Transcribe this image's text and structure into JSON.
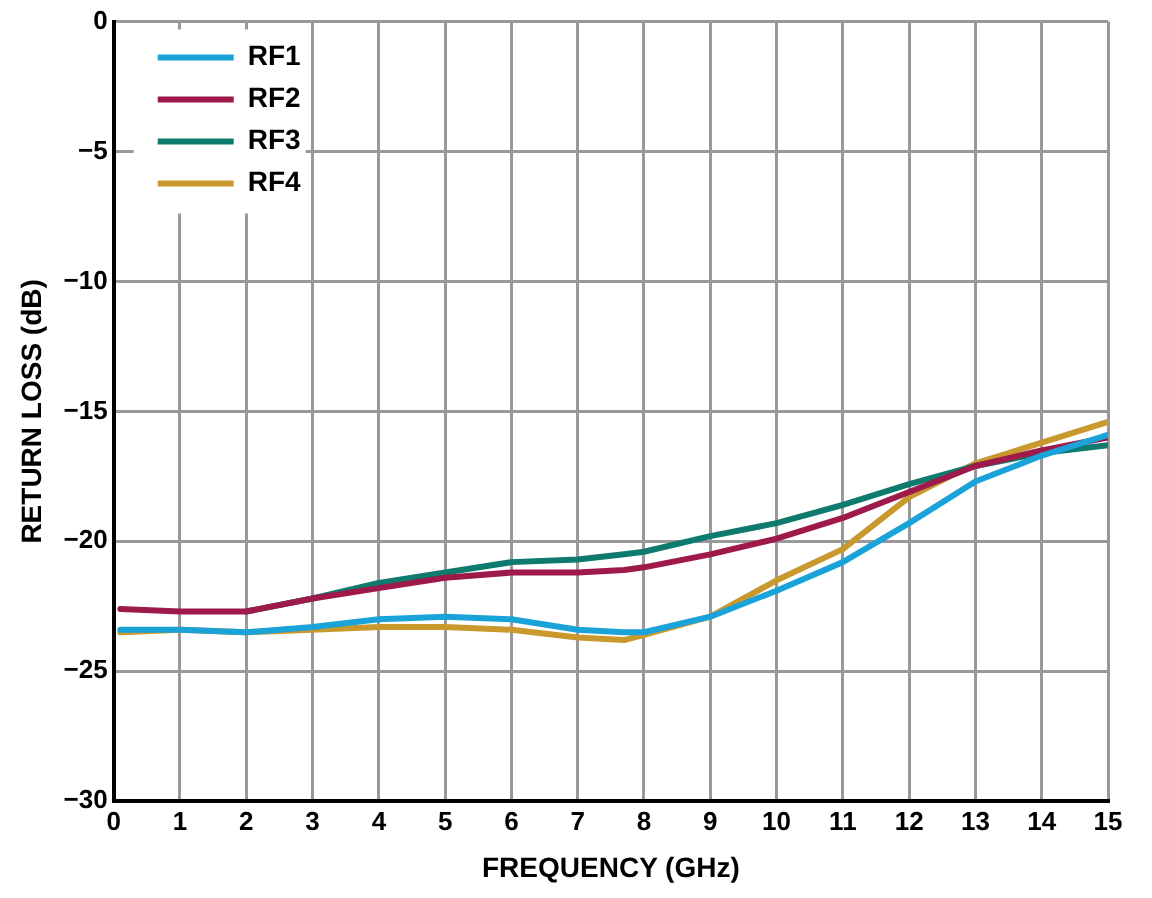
{
  "chart_data": {
    "type": "line",
    "xlabel": "FREQUENCY (GHz)",
    "ylabel": "RETURN LOSS (dB)",
    "x": [
      0.1,
      1,
      2,
      3,
      4,
      5,
      6,
      7,
      7.7,
      8,
      9,
      10,
      11,
      12,
      13,
      14,
      15
    ],
    "xlim": [
      0,
      15
    ],
    "xticks": [
      0,
      1,
      2,
      3,
      4,
      5,
      6,
      7,
      8,
      9,
      10,
      11,
      12,
      13,
      14,
      15
    ],
    "ylim": [
      -30,
      0
    ],
    "yticks": [
      -30,
      -25,
      -20,
      -15,
      -10,
      -5,
      0
    ],
    "grid": true,
    "legend": "top left",
    "marker": "none",
    "line_style": "solid",
    "series": [
      {
        "name": "RF1",
        "color": "#1aa3d9",
        "values": [
          -23.4,
          -23.4,
          -23.5,
          -23.3,
          -23.0,
          -22.9,
          -23.0,
          -23.4,
          -23.5,
          -23.5,
          -22.9,
          -21.9,
          -20.8,
          -19.3,
          -17.7,
          -16.7,
          -15.9
        ]
      },
      {
        "name": "RF2",
        "color": "#9e1a4a",
        "values": [
          -22.6,
          -22.7,
          -22.7,
          -22.2,
          -21.8,
          -21.4,
          -21.2,
          -21.2,
          -21.1,
          -21.0,
          -20.5,
          -19.9,
          -19.1,
          -18.1,
          -17.1,
          -16.5,
          -16.0
        ]
      },
      {
        "name": "RF3",
        "color": "#0f7a6e",
        "values": [
          null,
          null,
          -22.7,
          -22.2,
          -21.6,
          -21.2,
          -20.8,
          -20.7,
          -20.5,
          -20.4,
          -19.8,
          -19.3,
          -18.6,
          -17.8,
          -17.1,
          -16.6,
          -16.3
        ]
      },
      {
        "name": "RF4",
        "color": "#c9992e",
        "values": [
          -23.5,
          -23.4,
          -23.5,
          -23.4,
          -23.3,
          -23.3,
          -23.4,
          -23.7,
          -23.8,
          -23.6,
          -22.9,
          -21.5,
          -20.3,
          -18.3,
          -17.0,
          -16.2,
          -15.4
        ]
      }
    ]
  }
}
